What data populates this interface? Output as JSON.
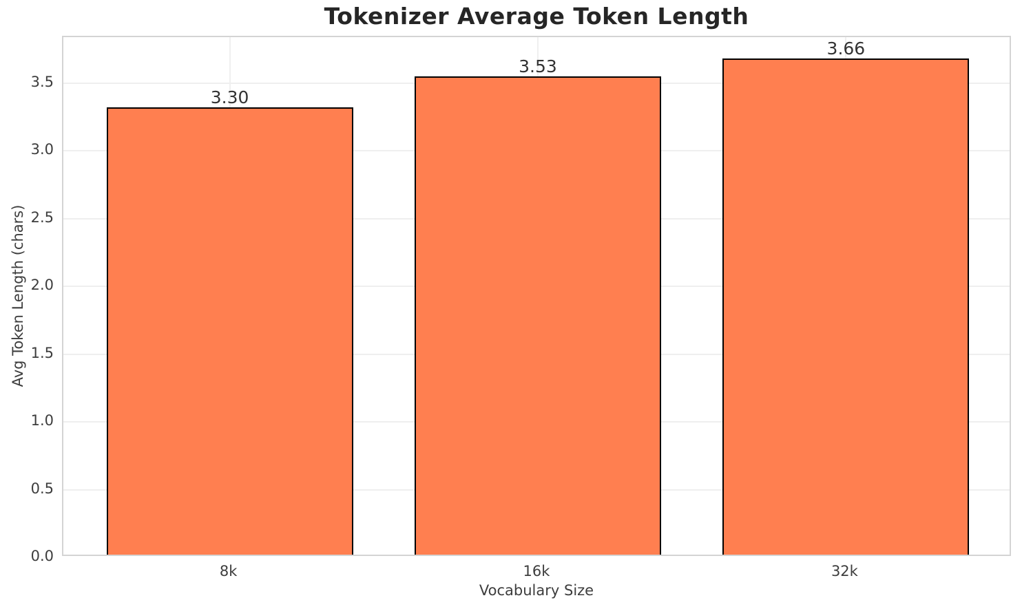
{
  "chart_data": {
    "type": "bar",
    "title": "Tokenizer Average Token Length",
    "xlabel": "Vocabulary Size",
    "ylabel": "Avg Token Length (chars)",
    "categories": [
      "8k",
      "16k",
      "32k"
    ],
    "values": [
      3.3,
      3.53,
      3.66
    ],
    "bar_labels": [
      "3.30",
      "3.53",
      "3.66"
    ],
    "ylim": [
      0,
      3.84
    ],
    "yticks": [
      0.0,
      0.5,
      1.0,
      1.5,
      2.0,
      2.5,
      3.0,
      3.5
    ],
    "ytick_labels": [
      "0.0",
      "0.5",
      "1.0",
      "1.5",
      "2.0",
      "2.5",
      "3.0",
      "3.5"
    ],
    "grid": true,
    "legend": false,
    "bar_color": "#FF7F50",
    "bar_edge_color": "#000000",
    "grid_color": "#efefef",
    "spine_color": "#d4d4d4",
    "background_color": "#ffffff",
    "text_color": "#3d3d3d",
    "title_color": "#262626"
  }
}
